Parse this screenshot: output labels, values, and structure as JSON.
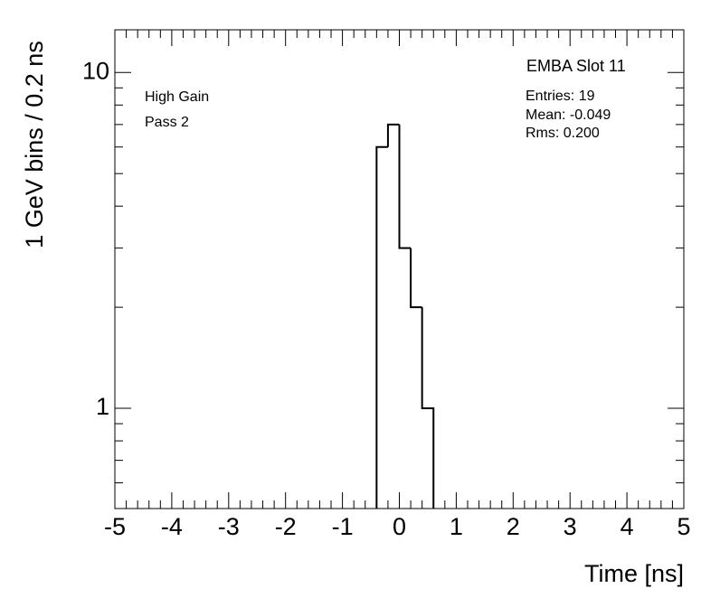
{
  "chart_data": {
    "type": "histogram",
    "title": "EMBA Slot 11",
    "annotations": [
      "High Gain",
      "Pass 2"
    ],
    "stats": [
      "Entries: 19",
      "Mean: -0.049",
      "Rms: 0.200"
    ],
    "x_label": "Time [ns]",
    "y_label": "1 GeV bins / 0.2 ns",
    "bins": [
      -0.4,
      -0.2,
      0,
      0.2,
      0.4,
      0.6
    ],
    "counts": [
      6,
      7,
      3,
      2,
      1
    ],
    "color": "#000000",
    "log_y": true,
    "xlim": [
      -5,
      5
    ],
    "xticks": [
      -5,
      -4,
      -3,
      -2,
      -1,
      0,
      1,
      2,
      3,
      4,
      5
    ],
    "ylim": [
      0.503,
      13.4
    ],
    "yticks": [
      1,
      10
    ]
  }
}
